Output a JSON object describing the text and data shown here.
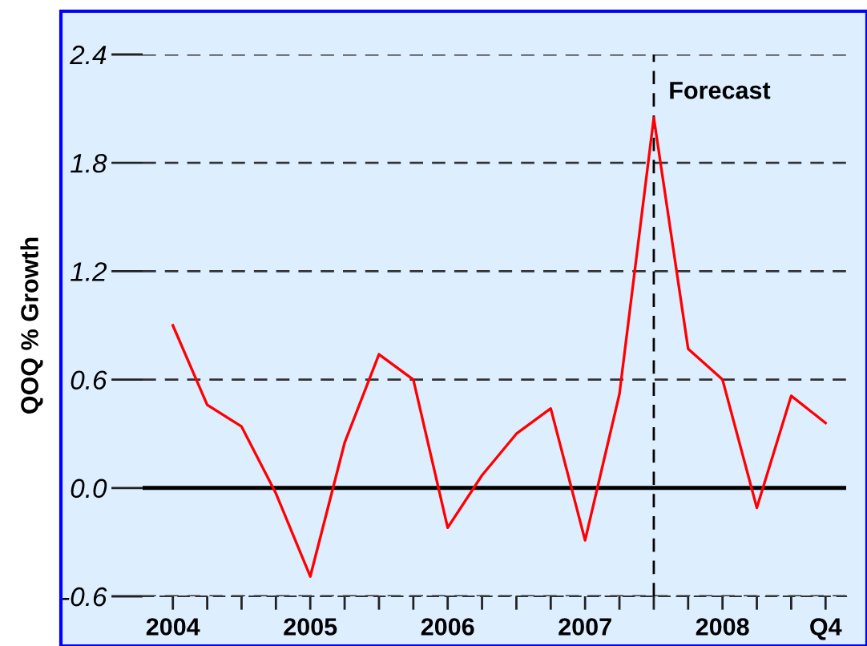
{
  "chart_data": {
    "type": "line",
    "ylabel": "QOQ % Growth",
    "x": [
      2004,
      2004.25,
      2004.5,
      2004.75,
      2005,
      2005.25,
      2005.5,
      2005.75,
      2006,
      2006.25,
      2006.5,
      2006.75,
      2007,
      2007.25,
      2007.5,
      2007.75,
      2008,
      2008.25,
      2008.5,
      2008.75
    ],
    "series": [
      {
        "color": "#ff0000",
        "values": [
          0.9,
          0.46,
          0.34,
          -0.03,
          -0.49,
          0.25,
          0.74,
          0.6,
          -0.22,
          0.07,
          0.3,
          0.44,
          -0.29,
          0.52,
          2.05,
          0.77,
          0.6,
          -0.11,
          0.51,
          0.36
        ]
      }
    ],
    "xlim": [
      2003.78,
      2008.9
    ],
    "xticks": [
      {
        "value": 2004,
        "label": "2004"
      },
      {
        "value": 2004.25,
        "label": null
      },
      {
        "value": 2004.5,
        "label": null
      },
      {
        "value": 2004.75,
        "label": null
      },
      {
        "value": 2005,
        "label": "2005"
      },
      {
        "value": 2005.25,
        "label": null
      },
      {
        "value": 2005.5,
        "label": null
      },
      {
        "value": 2005.75,
        "label": null
      },
      {
        "value": 2006,
        "label": "2006"
      },
      {
        "value": 2006.25,
        "label": null
      },
      {
        "value": 2006.5,
        "label": null
      },
      {
        "value": 2006.75,
        "label": null
      },
      {
        "value": 2007,
        "label": "2007"
      },
      {
        "value": 2007.25,
        "label": null
      },
      {
        "value": 2007.5,
        "label": null
      },
      {
        "value": 2007.75,
        "label": null
      },
      {
        "value": 2008,
        "label": "2008"
      },
      {
        "value": 2008.25,
        "label": null
      },
      {
        "value": 2008.5,
        "label": null
      },
      {
        "value": 2008.75,
        "label": "Q4"
      }
    ],
    "ylim": [
      -0.6,
      2.4
    ],
    "yticks": [
      {
        "value": -0.6,
        "label": "-0.6"
      },
      {
        "value": 0,
        "label": "0.0"
      },
      {
        "value": 0.6,
        "label": "0.6"
      },
      {
        "value": 1.2,
        "label": "1.2"
      },
      {
        "value": 1.8,
        "label": "1.8"
      },
      {
        "value": 2.4,
        "label": "2.4"
      }
    ],
    "grid": "y",
    "ref_lines": [
      {
        "axis": "y",
        "value": 0,
        "color": "#000000",
        "line_style": "solid"
      },
      {
        "axis": "x",
        "value": 2007.5,
        "color": "#000000",
        "line_style": "dashed"
      }
    ],
    "annotations": [
      "Forecast"
    ]
  }
}
